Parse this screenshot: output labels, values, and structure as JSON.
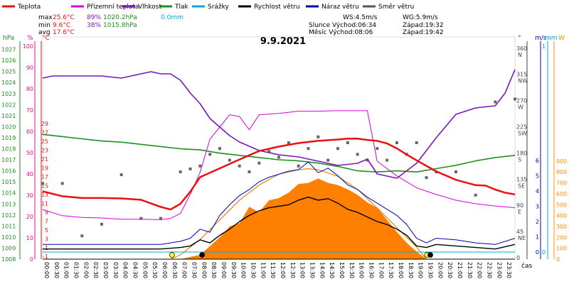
{
  "chart_data": {
    "type": "line",
    "title": "9.9.2021",
    "legend": [
      {
        "label": "Teplota",
        "color": "#e8110f"
      },
      {
        "label": "Přízemní teplota",
        "color": "#d900d9"
      },
      {
        "label": "Vlhkost",
        "color": "#7a16b8"
      },
      {
        "label": "Tlak",
        "color": "#1f8f1f"
      },
      {
        "label": "Srážky",
        "color": "#00a8d8"
      },
      {
        "label": "Rychlost větru",
        "color": "#000000"
      },
      {
        "label": "Náraz větru",
        "color": "#0000b0"
      },
      {
        "label": "Směr větru",
        "color": "#555555"
      }
    ],
    "stats": {
      "max_label": "max",
      "max_temp": "25.6°C",
      "max_hum": "89%",
      "max_press": "1020.2hPa",
      "max_rain": "0.0mm",
      "min_label": "min",
      "min_temp": "9.6°C",
      "min_hum": "38%",
      "min_press": "1015.8hPa",
      "avg_label": "avg",
      "avg_temp": "17.6°C"
    },
    "wind_info": {
      "ws": "WS:4.5m/s",
      "wg": "WG:5.9m/s"
    },
    "astro": {
      "sun": "Slunce Východ:06:34",
      "sun_set": "Západ:19:32",
      "moon": "Měsíc  Východ:08:06",
      "moon_set": "Západ:19:42"
    },
    "axes": {
      "hpa_title": "hPa",
      "pct_title": "%",
      "c_title": "°C",
      "deg_title": "°",
      "ms_title": "m/s",
      "mm_title": "mm",
      "w_title": "W",
      "hpa_ticks": [
        "1027",
        "1026",
        "1025",
        "1024",
        "1023",
        "1022",
        "1021",
        "1020",
        "1019",
        "1018",
        "1017",
        "1016",
        "1015",
        "1014",
        "1013",
        "1012",
        "1011",
        "1010",
        "1009",
        "1008"
      ],
      "pct_ticks": [
        "100",
        "90",
        "80",
        "70",
        "60",
        "50",
        "40",
        "30",
        "20",
        "10",
        "0"
      ],
      "c_ticks": [
        "29",
        "27",
        "25",
        "23",
        "21",
        "19",
        "17",
        "15",
        "13",
        "11",
        "9",
        "7",
        "5",
        "3",
        "1",
        "-1"
      ],
      "deg_ticks": [
        {
          "v": "360",
          "d": "N"
        },
        {
          "v": "315",
          "d": "NW"
        },
        {
          "v": "270",
          "d": "W"
        },
        {
          "v": "225",
          "d": "SW"
        },
        {
          "v": "180",
          "d": "S"
        },
        {
          "v": "135",
          "d": "SE"
        },
        {
          "v": "90",
          "d": "E"
        },
        {
          "v": "45",
          "d": "NE"
        },
        {
          "v": "0",
          "d": ""
        }
      ],
      "ms_ticks": [
        "6",
        "5",
        "4",
        "3",
        "2",
        "1",
        "0"
      ],
      "mm_top": "1",
      "mm_zero": "0",
      "w_ticks": [
        "900",
        "800",
        "700",
        "600",
        "500",
        "400",
        "300",
        "200",
        "100",
        "0"
      ],
      "x_unit": "čas",
      "x_ticks": [
        "00:00",
        "00:30",
        "01:00",
        "01:30",
        "02:00",
        "02:30",
        "03:00",
        "03:30",
        "04:00",
        "04:30",
        "05:00",
        "05:30",
        "06:00",
        "06:30",
        "07:00",
        "07:30",
        "08:00",
        "08:30",
        "09:00",
        "09:30",
        "10:00",
        "10:30",
        "11:00",
        "11:30",
        "12:00",
        "12:30",
        "13:00",
        "13:30",
        "14:00",
        "14:30",
        "15:00",
        "15:30",
        "16:00",
        "16:30",
        "17:00",
        "17:30",
        "18:00",
        "18:30",
        "19:00",
        "19:30",
        "20:00",
        "20:30",
        "21:00",
        "21:30",
        "22:00",
        "22:30",
        "23:00",
        "23:30"
      ]
    },
    "series": [
      {
        "name": "Teplota",
        "unit": "°C",
        "x": [
          0,
          1,
          2,
          3,
          4,
          5,
          6,
          6.5,
          7,
          7.5,
          8,
          9,
          10,
          11,
          12,
          13,
          14,
          15,
          15.5,
          16,
          16.5,
          17,
          17.5,
          18,
          18.5,
          19,
          20,
          21,
          22,
          22.5,
          23,
          23.5,
          24
        ],
        "y": [
          13.7,
          12.6,
          12.2,
          12.2,
          12.1,
          11.8,
          10.2,
          9.6,
          10.9,
          13.6,
          16.9,
          18.9,
          20.9,
          22.8,
          23.8,
          24.6,
          25.1,
          25.4,
          25.6,
          25.6,
          25.3,
          25.1,
          24.5,
          23.4,
          22.0,
          20.7,
          18.2,
          16.3,
          15.1,
          15.0,
          14.1,
          13.4,
          13.0
        ]
      },
      {
        "name": "Přízemní teplota",
        "unit": "°C",
        "x": [
          0,
          1,
          2,
          3,
          4,
          5,
          6,
          6.5,
          7,
          7.5,
          8,
          8.5,
          9,
          9.5,
          10,
          10.5,
          11,
          12,
          13,
          14,
          15,
          16,
          16.5,
          17,
          18,
          19,
          20,
          21,
          22,
          23,
          24
        ],
        "y": [
          9.6,
          8.2,
          7.8,
          7.7,
          7.4,
          7.4,
          7.3,
          7.6,
          8.7,
          13.0,
          18.0,
          25.5,
          28.2,
          31.0,
          30.6,
          27.6,
          31.0,
          31.3,
          31.8,
          31.8,
          31.9,
          31.9,
          31.9,
          20.5,
          17.2,
          14.5,
          13.0,
          11.7,
          10.9,
          10.4,
          10.0
        ]
      },
      {
        "name": "Vlhkost",
        "unit": "%",
        "x": [
          0,
          0.5,
          1,
          2,
          3,
          4,
          5,
          5.5,
          6,
          6.5,
          7,
          7.5,
          8,
          8.5,
          9,
          9.5,
          10,
          11,
          12,
          13,
          14,
          15,
          16,
          16.5,
          17,
          18,
          19,
          20,
          21,
          22,
          23,
          23.5,
          24
        ],
        "y": [
          85,
          86,
          86,
          86,
          86,
          85,
          87,
          88,
          87,
          87,
          84,
          78,
          73,
          66,
          62,
          58,
          55,
          51,
          49,
          48,
          46,
          44,
          45,
          47,
          40,
          38,
          45,
          57,
          68,
          71,
          72,
          78,
          89
        ]
      },
      {
        "name": "Tlak",
        "unit": "hPa",
        "x": [
          0,
          1,
          2,
          3,
          4,
          5,
          6,
          7,
          8,
          9,
          10,
          11,
          12,
          13,
          14,
          15,
          16,
          17,
          18,
          19,
          20,
          21,
          22,
          23,
          24
        ],
        "y": [
          1019.3,
          1019.1,
          1018.9,
          1018.7,
          1018.6,
          1018.4,
          1018.2,
          1018.0,
          1017.9,
          1017.6,
          1017.4,
          1017.2,
          1017.0,
          1016.9,
          1016.7,
          1016.4,
          1016.0,
          1015.9,
          1016.0,
          1015.9,
          1016.2,
          1016.5,
          1016.9,
          1017.2,
          1017.4
        ]
      },
      {
        "name": "Srážky",
        "unit": "mm",
        "x": [
          0,
          24
        ],
        "y": [
          0.0,
          0.0
        ]
      },
      {
        "name": "Rychlost větru",
        "unit": "m/s",
        "x": [
          0,
          2,
          4,
          6,
          7,
          7.5,
          8,
          8.5,
          9,
          9.5,
          10,
          10.5,
          11,
          11.5,
          12,
          12.5,
          13,
          13.5,
          14,
          14.5,
          15,
          15.5,
          16,
          16.5,
          17,
          17.5,
          18,
          18.5,
          19,
          19.5,
          20,
          21,
          22,
          23,
          24
        ],
        "y": [
          0.2,
          0.2,
          0.2,
          0.2,
          0.3,
          0.4,
          0.8,
          0.6,
          1.1,
          1.5,
          2.0,
          2.4,
          2.7,
          2.9,
          3.0,
          3.1,
          3.4,
          3.6,
          3.4,
          3.5,
          3.2,
          2.8,
          2.6,
          2.3,
          2.0,
          1.8,
          1.5,
          1.1,
          0.4,
          0.3,
          0.5,
          0.4,
          0.3,
          0.2,
          0.5
        ]
      },
      {
        "name": "Náraz větru",
        "unit": "m/s",
        "x": [
          0,
          2,
          4,
          6,
          7,
          7.5,
          8,
          8.5,
          9,
          9.5,
          10,
          10.5,
          11,
          11.5,
          12,
          12.5,
          13,
          13.5,
          14,
          14.5,
          15,
          15.5,
          16,
          16.5,
          17,
          17.5,
          18,
          18.5,
          19,
          19.5,
          20,
          21,
          22,
          23,
          24
        ],
        "y": [
          0.5,
          0.5,
          0.5,
          0.5,
          0.7,
          0.9,
          1.5,
          1.3,
          2.4,
          3.1,
          3.7,
          4.1,
          4.6,
          4.9,
          5.1,
          5.3,
          5.4,
          5.9,
          5.2,
          5.5,
          5.0,
          4.4,
          4.1,
          3.6,
          3.2,
          2.8,
          2.4,
          1.8,
          0.9,
          0.6,
          0.9,
          0.8,
          0.6,
          0.5,
          0.9
        ]
      },
      {
        "name": "Směr větru",
        "unit": "°",
        "x": [
          0,
          1,
          2,
          3,
          4,
          5,
          6,
          7,
          7.5,
          8,
          8.5,
          9,
          9.5,
          10,
          10.5,
          11,
          11.5,
          12,
          12.5,
          13,
          13.5,
          14,
          14.5,
          15,
          15.5,
          16,
          16.5,
          17,
          17.5,
          18,
          18.5,
          19,
          19.5,
          20,
          21,
          22,
          23,
          24
        ],
        "y": [
          130,
          130,
          40,
          60,
          145,
          70,
          70,
          150,
          155,
          160,
          180,
          190,
          170,
          160,
          150,
          165,
          185,
          175,
          200,
          160,
          190,
          210,
          170,
          190,
          200,
          180,
          170,
          190,
          170,
          200,
          180,
          200,
          140,
          150,
          150,
          110,
          270,
          275
        ]
      },
      {
        "name": "Sluneční záření",
        "unit": "W",
        "x": [
          7,
          8,
          8.5,
          9,
          9.5,
          10,
          10.5,
          11,
          11.5,
          12,
          12.5,
          13,
          13.5,
          14,
          14.5,
          15,
          15.5,
          16,
          16.5,
          17,
          17.5,
          18,
          18.5,
          19,
          19.5
        ],
        "y": [
          0,
          40,
          120,
          200,
          300,
          330,
          480,
          430,
          540,
          560,
          610,
          690,
          700,
          740,
          700,
          680,
          640,
          590,
          520,
          470,
          360,
          250,
          150,
          70,
          0
        ]
      },
      {
        "name": "Teoretické záření",
        "unit": "W",
        "x": [
          6.5,
          7,
          8,
          9,
          10,
          11,
          12,
          13,
          13.5,
          14,
          15,
          16,
          17,
          18,
          19,
          19.5
        ],
        "y": [
          0,
          40,
          180,
          360,
          540,
          680,
          780,
          820,
          830,
          820,
          760,
          640,
          470,
          290,
          110,
          0
        ]
      }
    ]
  }
}
